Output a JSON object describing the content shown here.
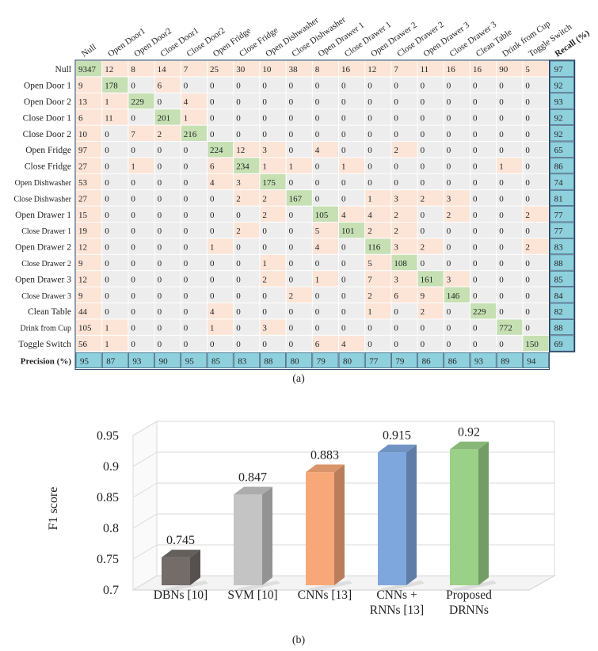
{
  "chart_data": [
    {
      "type": "heatmap",
      "title": "",
      "caption": "(a)",
      "labels": [
        "Null",
        "Open Door1",
        "Open Door2",
        "Close Door1",
        "Close Door2",
        "Open Fridge",
        "Close Fridge",
        "Open Dishwasher",
        "Close Dishwasher",
        "Open Drawer 1",
        "Close Drawer 1",
        "Open Drawer 2",
        "Close Drawer 2",
        "Open Drawer 3",
        "Close Drawer 3",
        "Clean Table",
        "Drink from Cup",
        "Toggle Switch"
      ],
      "row_labels": [
        "Null",
        "Open Door 1",
        "Open Door 2",
        "Close Door 1",
        "Close Door 2",
        "Open Fridge",
        "Close Fridge",
        "Open Dishwasher",
        "Close Dishwasher",
        "Open Drawer 1",
        "Close Drawer 1",
        "Open Drawer 2",
        "Close Drawer 2",
        "Open Drawer 3",
        "Close Drawer 3",
        "Clean Table",
        "Drink from Cup",
        "Toggle Switch"
      ],
      "matrix": [
        [
          9347,
          12,
          8,
          14,
          7,
          25,
          30,
          10,
          38,
          8,
          16,
          12,
          7,
          11,
          16,
          16,
          90,
          5
        ],
        [
          9,
          178,
          0,
          6,
          0,
          0,
          0,
          0,
          0,
          0,
          0,
          0,
          0,
          0,
          0,
          0,
          0,
          0
        ],
        [
          13,
          1,
          229,
          0,
          4,
          0,
          0,
          0,
          0,
          0,
          0,
          0,
          0,
          0,
          0,
          0,
          0,
          0
        ],
        [
          6,
          11,
          0,
          201,
          1,
          0,
          0,
          0,
          0,
          0,
          0,
          0,
          0,
          0,
          0,
          0,
          0,
          0
        ],
        [
          10,
          0,
          7,
          2,
          216,
          0,
          0,
          0,
          0,
          0,
          0,
          0,
          0,
          0,
          0,
          0,
          0,
          0
        ],
        [
          97,
          0,
          0,
          0,
          0,
          224,
          12,
          3,
          0,
          4,
          0,
          0,
          2,
          0,
          0,
          0,
          0,
          0
        ],
        [
          27,
          0,
          1,
          0,
          0,
          6,
          234,
          1,
          1,
          0,
          1,
          0,
          0,
          0,
          0,
          0,
          1,
          0
        ],
        [
          53,
          0,
          0,
          0,
          0,
          4,
          3,
          175,
          0,
          0,
          0,
          0,
          0,
          0,
          0,
          0,
          0,
          0
        ],
        [
          27,
          0,
          0,
          0,
          0,
          0,
          2,
          2,
          167,
          0,
          0,
          1,
          3,
          2,
          3,
          0,
          0,
          0
        ],
        [
          15,
          0,
          0,
          0,
          0,
          0,
          0,
          2,
          0,
          105,
          4,
          4,
          2,
          0,
          2,
          0,
          0,
          2
        ],
        [
          19,
          0,
          0,
          0,
          0,
          0,
          2,
          0,
          0,
          5,
          101,
          2,
          2,
          0,
          0,
          0,
          0,
          0
        ],
        [
          12,
          0,
          0,
          0,
          0,
          1,
          0,
          0,
          0,
          4,
          0,
          116,
          3,
          2,
          0,
          0,
          0,
          2
        ],
        [
          9,
          0,
          0,
          0,
          0,
          0,
          0,
          1,
          0,
          0,
          0,
          5,
          108,
          0,
          0,
          0,
          0,
          0
        ],
        [
          12,
          0,
          0,
          0,
          0,
          0,
          0,
          2,
          0,
          1,
          0,
          7,
          3,
          161,
          3,
          0,
          0,
          0
        ],
        [
          9,
          0,
          0,
          0,
          0,
          0,
          0,
          0,
          2,
          0,
          0,
          2,
          6,
          9,
          146,
          0,
          0,
          0
        ],
        [
          44,
          0,
          0,
          0,
          0,
          4,
          0,
          0,
          0,
          0,
          0,
          1,
          0,
          2,
          0,
          229,
          0,
          0
        ],
        [
          105,
          1,
          0,
          0,
          0,
          1,
          0,
          3,
          0,
          0,
          0,
          0,
          0,
          0,
          0,
          0,
          772,
          0
        ],
        [
          56,
          1,
          0,
          0,
          0,
          0,
          0,
          0,
          0,
          6,
          4,
          0,
          0,
          0,
          0,
          0,
          0,
          150
        ]
      ],
      "recall_label": "Recall (%)",
      "recall": [
        97,
        92,
        93,
        92,
        92,
        65,
        86,
        74,
        81,
        77,
        77,
        83,
        88,
        85,
        84,
        82,
        88,
        69
      ],
      "precision_label": "Precision (%)",
      "precision": [
        95,
        87,
        93,
        90,
        95,
        85,
        83,
        88,
        80,
        79,
        80,
        77,
        79,
        86,
        86,
        93,
        89,
        94
      ],
      "colors": {
        "diagonal": "#c6e0b4",
        "offdiag_nonzero": "#fce4d6",
        "zero": "#ededed",
        "summary": "#8fd0dd",
        "border": "#1f3f5f"
      }
    },
    {
      "type": "bar",
      "caption": "(b)",
      "categories": [
        "DBNs [10]",
        "SVM [10]",
        "CNNs [13]",
        "CNNs + RNNs [13]",
        "Proposed DRNNs"
      ],
      "category_lines": [
        [
          "DBNs [10]"
        ],
        [
          "SVM [10]"
        ],
        [
          "CNNs [13]"
        ],
        [
          "CNNs +",
          "RNNs [13]"
        ],
        [
          "Proposed",
          "DRNNs"
        ]
      ],
      "values": [
        0.745,
        0.847,
        0.883,
        0.915,
        0.92
      ],
      "value_labels": [
        "0.745",
        "0.847",
        "0.883",
        "0.915",
        "0.92"
      ],
      "ylabel": "F1 score",
      "xlabel": "",
      "ylim": [
        0.7,
        0.95
      ],
      "yticks": [
        "0.7",
        "0.75",
        "0.8",
        "0.85",
        "0.9",
        "0.95"
      ],
      "colors": [
        "#736c69",
        "#c4c4c4",
        "#f8a878",
        "#7ea7de",
        "#9bd088"
      ]
    }
  ]
}
